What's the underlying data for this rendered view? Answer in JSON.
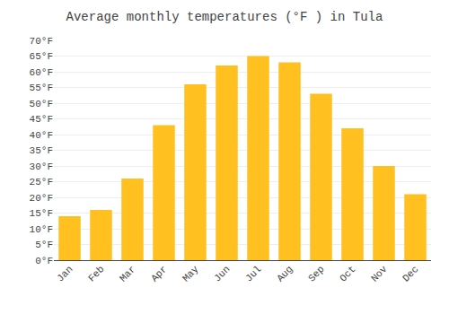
{
  "chart_data": {
    "type": "bar",
    "title": "Average monthly temperatures (°F ) in Tula",
    "categories": [
      "Jan",
      "Feb",
      "Mar",
      "Apr",
      "May",
      "Jun",
      "Jul",
      "Aug",
      "Sep",
      "Oct",
      "Nov",
      "Dec"
    ],
    "values": [
      14,
      16,
      26,
      43,
      56,
      62,
      65,
      63,
      53,
      42,
      30,
      21
    ],
    "color": "#FFC020",
    "ylim": [
      0,
      70
    ],
    "yticks": [
      {
        "value": 0,
        "label": "0°F"
      },
      {
        "value": 5,
        "label": "5°F"
      },
      {
        "value": 10,
        "label": "10°F"
      },
      {
        "value": 15,
        "label": "15°F"
      },
      {
        "value": 20,
        "label": "20°F"
      },
      {
        "value": 25,
        "label": "25°F"
      },
      {
        "value": 30,
        "label": "30°F"
      },
      {
        "value": 35,
        "label": "35°F"
      },
      {
        "value": 40,
        "label": "40°F"
      },
      {
        "value": 45,
        "label": "45°F"
      },
      {
        "value": 50,
        "label": "50°F"
      },
      {
        "value": 55,
        "label": "55°F"
      },
      {
        "value": 60,
        "label": "60°F"
      },
      {
        "value": 65,
        "label": "65°F"
      },
      {
        "value": 70,
        "label": "70°F"
      }
    ],
    "grid": true
  }
}
